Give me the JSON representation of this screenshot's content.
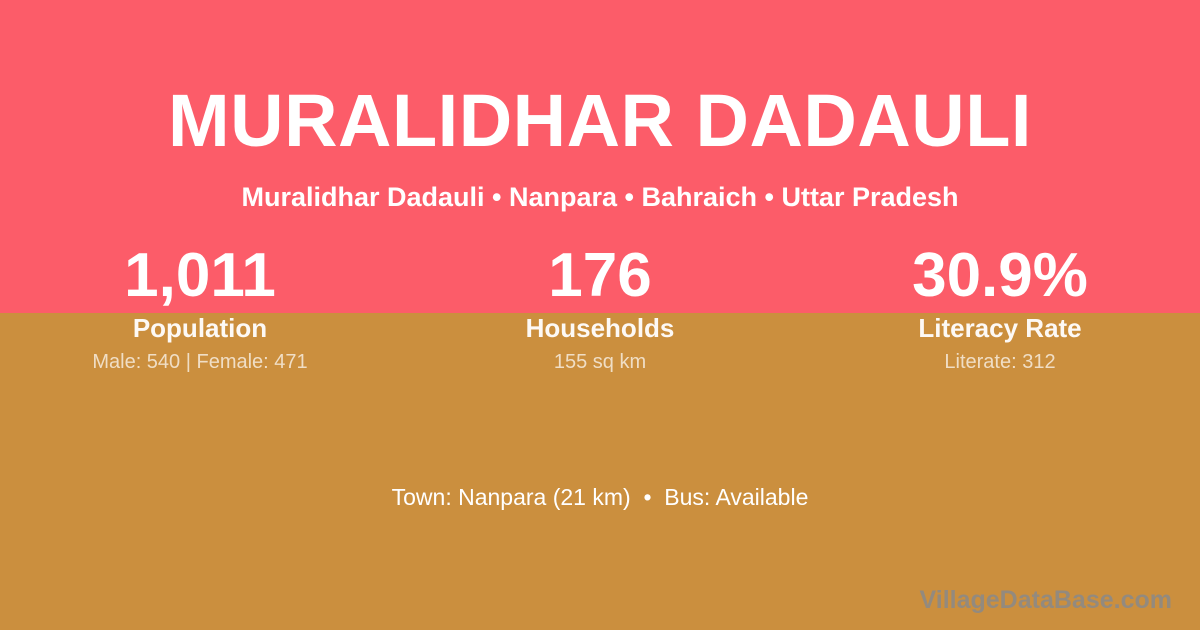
{
  "header": {
    "title": "MURALIDHAR DADAULI",
    "subtitle": "Muralidhar Dadauli • Nanpara • Bahraich • Uttar Pradesh"
  },
  "stats": [
    {
      "value": "1,011",
      "label": "Population",
      "detail": "Male: 540 | Female: 471"
    },
    {
      "value": "176",
      "label": "Households",
      "detail": "155 sq km"
    },
    {
      "value": "30.9%",
      "label": "Literacy Rate",
      "detail": "Literate: 312"
    }
  ],
  "footer": {
    "info": "Town: Nanpara (21 km)  •  Bus: Available",
    "watermark": "VillageDataBase.com"
  },
  "colors": {
    "top_background": "#FC5C69",
    "bottom_background": "#CB8F3E",
    "primary_text": "#FFFFFF",
    "detail_text": "#EBD6B4",
    "watermark_text": "#8A8A8A"
  }
}
